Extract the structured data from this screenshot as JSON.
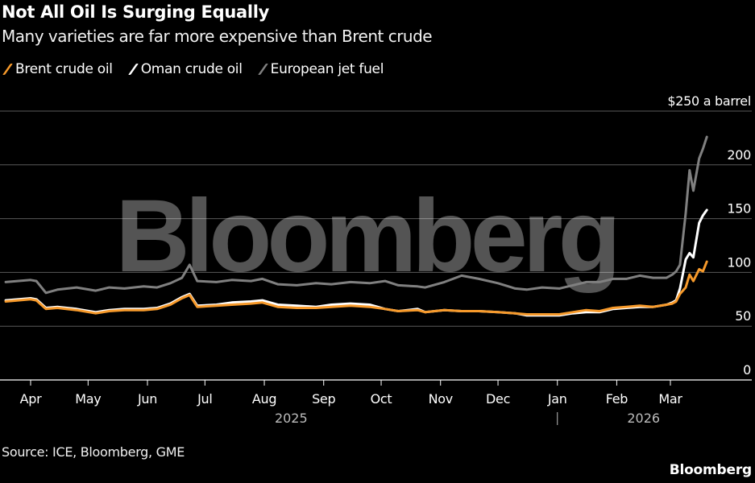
{
  "header": {
    "title": "Not All Oil Is Surging Equally",
    "subtitle": "Many varieties are far more expensive than Brent crude"
  },
  "legend": [
    {
      "label": "Brent crude oil",
      "color": "#f79a2b"
    },
    {
      "label": "Oman crude oil",
      "color": "#ffffff"
    },
    {
      "label": "European jet fuel",
      "color": "#808080"
    }
  ],
  "footer": {
    "source": "Source: ICE, Bloomberg, GME",
    "brand": "Bloomberg"
  },
  "watermark": "Bloomberg",
  "chart_data": {
    "type": "line",
    "title": "Not All Oil Is Surging Equally",
    "subtitle": "Many varieties are far more expensive than Brent crude",
    "xlabel": "",
    "ylabel": "",
    "y_unit_label": "$250 a barrel",
    "ylim": [
      0,
      250
    ],
    "yticks": [
      0,
      50,
      100,
      150,
      200,
      250
    ],
    "ytick_labels": [
      "0",
      "50",
      "100",
      "150",
      "200",
      "$250 a barrel"
    ],
    "grid": true,
    "legend_position": "top-left",
    "xlim": [
      "2025-03-16",
      "2026-03-31"
    ],
    "xticks": [
      {
        "date": "2025-04-01",
        "label": "Apr"
      },
      {
        "date": "2025-05-01",
        "label": "May"
      },
      {
        "date": "2025-06-01",
        "label": "Jun"
      },
      {
        "date": "2025-07-01",
        "label": "Jul"
      },
      {
        "date": "2025-08-01",
        "label": "Aug"
      },
      {
        "date": "2025-09-01",
        "label": "Sep"
      },
      {
        "date": "2025-10-01",
        "label": "Oct"
      },
      {
        "date": "2025-11-01",
        "label": "Nov"
      },
      {
        "date": "2025-12-01",
        "label": "Dec"
      },
      {
        "date": "2026-01-01",
        "label": "Jan"
      },
      {
        "date": "2026-02-01",
        "label": "Feb"
      },
      {
        "date": "2026-03-01",
        "label": "Mar"
      }
    ],
    "year_labels": [
      {
        "date": "2025-08-15",
        "label": "2025"
      },
      {
        "date": "2026-02-15",
        "label": "2026"
      }
    ],
    "year_divider_date": "2026-01-01",
    "x": [
      "2025-03-19",
      "2025-04-01",
      "2025-04-04",
      "2025-04-09",
      "2025-04-15",
      "2025-04-25",
      "2025-05-05",
      "2025-05-12",
      "2025-05-20",
      "2025-05-30",
      "2025-06-06",
      "2025-06-13",
      "2025-06-19",
      "2025-06-23",
      "2025-06-27",
      "2025-07-07",
      "2025-07-15",
      "2025-07-25",
      "2025-07-31",
      "2025-08-08",
      "2025-08-18",
      "2025-08-28",
      "2025-09-05",
      "2025-09-15",
      "2025-09-25",
      "2025-10-03",
      "2025-10-10",
      "2025-10-20",
      "2025-10-24",
      "2025-11-03",
      "2025-11-12",
      "2025-11-21",
      "2025-12-01",
      "2025-12-10",
      "2025-12-16",
      "2025-12-24",
      "2026-01-02",
      "2026-01-09",
      "2026-01-16",
      "2026-01-23",
      "2026-01-30",
      "2026-02-06",
      "2026-02-13",
      "2026-02-20",
      "2026-02-27",
      "2026-03-02",
      "2026-03-04",
      "2026-03-06",
      "2026-03-09",
      "2026-03-11",
      "2026-03-13",
      "2026-03-16",
      "2026-03-18",
      "2026-03-20"
    ],
    "series": [
      {
        "name": "Brent crude oil",
        "color": "#f79a2b",
        "values": [
          73,
          75,
          74,
          66,
          67,
          65,
          62,
          64,
          65,
          65,
          66,
          70,
          76,
          79,
          68,
          69,
          70,
          71,
          72,
          68,
          67,
          67,
          68,
          69,
          68,
          66,
          64,
          65,
          63,
          65,
          64,
          64,
          63,
          62,
          61,
          61,
          61,
          63,
          65,
          64,
          67,
          68,
          69,
          68,
          70,
          71,
          73,
          80,
          86,
          98,
          92,
          103,
          101,
          110
        ]
      },
      {
        "name": "Oman crude oil",
        "color": "#ffffff",
        "values": [
          74,
          76,
          75,
          67,
          68,
          66,
          63,
          65,
          66,
          66,
          67,
          71,
          77,
          80,
          69,
          70,
          72,
          73,
          74,
          70,
          69,
          68,
          70,
          71,
          70,
          66,
          64,
          66,
          63,
          65,
          64,
          64,
          63,
          62,
          60,
          60,
          60,
          62,
          63,
          63,
          66,
          67,
          68,
          68,
          70,
          72,
          74,
          85,
          112,
          118,
          114,
          146,
          153,
          158
        ]
      },
      {
        "name": "European jet fuel",
        "color": "#808080",
        "values": [
          91,
          93,
          92,
          81,
          84,
          86,
          83,
          86,
          85,
          87,
          86,
          90,
          95,
          107,
          92,
          91,
          93,
          92,
          94,
          89,
          88,
          90,
          89,
          91,
          90,
          92,
          88,
          87,
          86,
          91,
          97,
          94,
          90,
          85,
          84,
          86,
          85,
          88,
          91,
          91,
          94,
          94,
          97,
          95,
          95,
          98,
          101,
          107,
          155,
          195,
          176,
          206,
          215,
          226
        ]
      }
    ]
  }
}
